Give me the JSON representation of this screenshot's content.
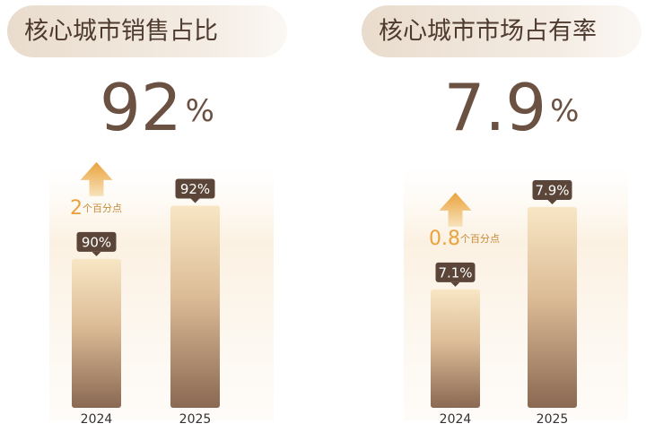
{
  "chart_data": [
    {
      "type": "bar",
      "title": "核心城市销售占比",
      "headline": "92",
      "headline_unit": "%",
      "categories": [
        "2024",
        "2025"
      ],
      "values": [
        90,
        92
      ],
      "value_labels": [
        "90%",
        "92%"
      ],
      "annotation": {
        "value": "2",
        "unit": "个百分点"
      },
      "ylim": [
        84.4,
        93.5
      ]
    },
    {
      "type": "bar",
      "title": "核心城市市场占有率",
      "headline": "7.9",
      "headline_unit": "%",
      "categories": [
        "2024",
        "2025"
      ],
      "values": [
        7.1,
        7.9
      ],
      "value_labels": [
        "7.1%",
        "7.9%"
      ],
      "annotation": {
        "value": "0.8",
        "unit": "个百分点"
      },
      "ylim": [
        5.95,
        8.3
      ]
    }
  ]
}
